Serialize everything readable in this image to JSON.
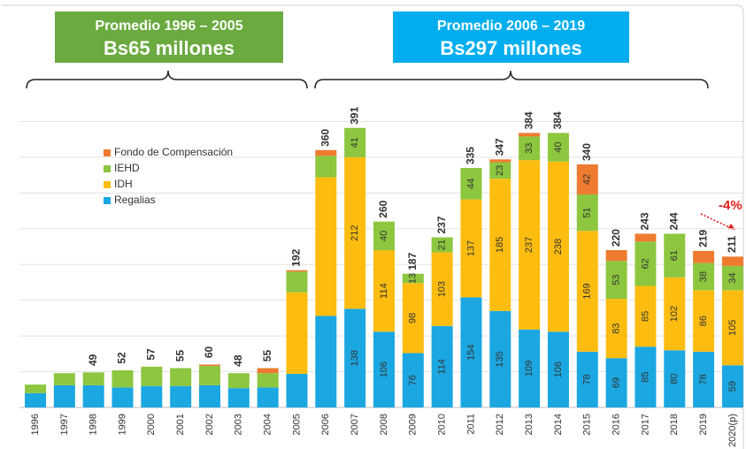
{
  "chart_data": {
    "type": "stacked_bar",
    "periods": [
      {
        "title": "Promedio 1996 – 2005",
        "value": "Bs65 millones",
        "color": "#6aaa3f"
      },
      {
        "title": "Promedio 2006 – 2019",
        "value": "Bs297 millones",
        "color": "#00aeef"
      }
    ],
    "categories": [
      "1996",
      "1997",
      "1998",
      "1999",
      "2000",
      "2001",
      "2002",
      "2003",
      "2004",
      "2005",
      "2006",
      "2007",
      "2008",
      "2009",
      "2010",
      "2011",
      "2012",
      "2013",
      "2014",
      "2015",
      "2016",
      "2017",
      "2018",
      "2019",
      "2020(p)"
    ],
    "series": [
      {
        "name": "Regalias",
        "color": "#1ba7e1",
        "values": [
          20,
          31,
          31,
          28,
          30,
          30,
          31,
          27,
          28,
          47,
          128,
          138,
          106,
          76,
          114,
          154,
          135,
          109,
          106,
          78,
          69,
          85,
          80,
          78,
          59
        ]
      },
      {
        "name": "IDH",
        "color": "#fdbd10",
        "values": [
          0,
          0,
          0,
          0,
          0,
          0,
          0,
          0,
          0,
          114,
          194,
          212,
          114,
          98,
          103,
          137,
          185,
          237,
          238,
          169,
          83,
          85,
          102,
          86,
          105
        ]
      },
      {
        "name": "IEHD",
        "color": "#8dc63f",
        "values": [
          12,
          17,
          18,
          24,
          27,
          25,
          27,
          21,
          20,
          29,
          30,
          41,
          40,
          13,
          21,
          44,
          23,
          33,
          40,
          51,
          53,
          62,
          61,
          38,
          34
        ]
      },
      {
        "name": "Fondo de Compensación",
        "color": "#ee7b30",
        "values": [
          0,
          0,
          0,
          0,
          0,
          0,
          2,
          0,
          7,
          2,
          8,
          0,
          0,
          0,
          0,
          0,
          4,
          5,
          0,
          42,
          15,
          11,
          0,
          17,
          13
        ]
      }
    ],
    "totals": [
      null,
      null,
      49,
      52,
      57,
      55,
      60,
      48,
      55,
      192,
      360,
      391,
      260,
      187,
      237,
      335,
      347,
      384,
      384,
      340,
      220,
      243,
      244,
      219,
      211
    ],
    "annotation": "-4%",
    "ylim": [
      0,
      450
    ],
    "yticks": [
      0,
      50,
      100,
      150,
      200,
      250,
      300,
      350,
      400
    ],
    "grid": true
  }
}
